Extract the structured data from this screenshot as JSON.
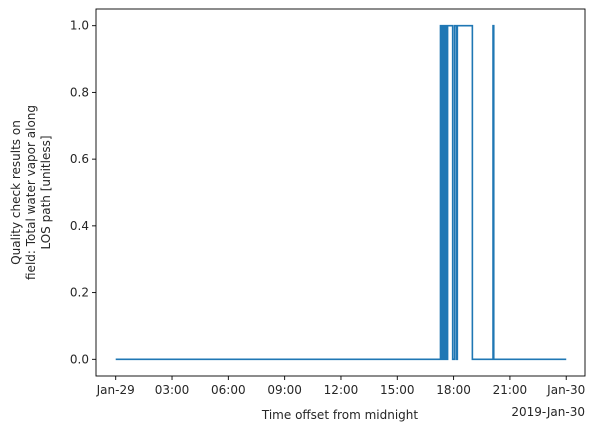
{
  "chart_data": {
    "type": "line",
    "title": "",
    "xlabel": "Time offset from midnight",
    "ylabel_lines": [
      "Quality check results on",
      "field: Total water vapor along",
      "LOS path [unitless]"
    ],
    "x_unit": "hour-of-day",
    "xlim": [
      -1.05,
      25.0
    ],
    "ylim": [
      -0.05,
      1.05
    ],
    "x_ticks": [
      {
        "value": 0,
        "label": "Jan-29"
      },
      {
        "value": 3,
        "label": "03:00"
      },
      {
        "value": 6,
        "label": "06:00"
      },
      {
        "value": 9,
        "label": "09:00"
      },
      {
        "value": 12,
        "label": "12:00"
      },
      {
        "value": 15,
        "label": "15:00"
      },
      {
        "value": 18,
        "label": "18:00"
      },
      {
        "value": 21,
        "label": "21:00"
      },
      {
        "value": 24,
        "label": "Jan-30"
      }
    ],
    "x_offset_label": "2019-Jan-30",
    "y_ticks": [
      {
        "value": 0.0,
        "label": "0.0"
      },
      {
        "value": 0.2,
        "label": "0.2"
      },
      {
        "value": 0.4,
        "label": "0.4"
      },
      {
        "value": 0.6,
        "label": "0.6"
      },
      {
        "value": 0.8,
        "label": "0.8"
      },
      {
        "value": 1.0,
        "label": "1.0"
      }
    ],
    "series": [
      {
        "color": "#1f77b4",
        "step": "post",
        "points": [
          [
            0.0,
            0
          ],
          [
            17.3,
            0
          ],
          [
            17.3,
            1
          ],
          [
            17.36,
            1
          ],
          [
            17.36,
            0
          ],
          [
            17.42,
            0
          ],
          [
            17.42,
            1
          ],
          [
            17.48,
            1
          ],
          [
            17.48,
            0
          ],
          [
            17.55,
            0
          ],
          [
            17.55,
            1
          ],
          [
            17.6,
            1
          ],
          [
            17.6,
            0
          ],
          [
            17.68,
            0
          ],
          [
            17.68,
            1
          ],
          [
            17.95,
            1
          ],
          [
            17.95,
            0
          ],
          [
            18.05,
            0
          ],
          [
            18.05,
            1
          ],
          [
            18.15,
            1
          ],
          [
            18.15,
            0
          ],
          [
            18.2,
            0
          ],
          [
            18.2,
            1
          ],
          [
            19.0,
            1
          ],
          [
            19.0,
            0
          ],
          [
            20.1,
            0
          ],
          [
            20.1,
            1
          ],
          [
            20.14,
            1
          ],
          [
            20.14,
            0
          ],
          [
            24.0,
            0
          ]
        ]
      }
    ]
  }
}
